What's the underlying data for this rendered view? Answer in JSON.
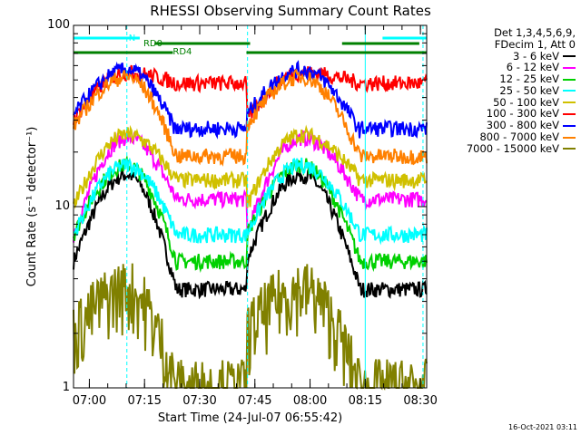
{
  "chart_data": {
    "type": "line",
    "title": "RHESSI Observing Summary Count Rates",
    "xlabel": "Start Time (24-Jul-07 06:55:42)",
    "ylabel": "Count Rate (s⁻¹ detector⁻¹)",
    "yscale": "log",
    "ylim": [
      1,
      100
    ],
    "y_ticks": [
      "1",
      "10",
      "100"
    ],
    "xlim_minutes": [
      0,
      96
    ],
    "x_ticks": [
      "07:00",
      "07:15",
      "07:30",
      "07:45",
      "08:00",
      "08:15",
      "08:30"
    ],
    "x_tick_minutes": [
      4.3,
      19.3,
      34.3,
      49.3,
      64.3,
      79.3,
      94.3
    ],
    "legend_header": [
      "Det 1,3,4,5,6,9,",
      "FDecim 1, Att 0"
    ],
    "legend_placement": "right",
    "series": [
      {
        "name": "3 - 6 keV",
        "color": "#000000",
        "day": [
          5,
          15,
          3.5
        ],
        "night": 3.5
      },
      {
        "name": "6 - 12 keV",
        "color": "#ff00ff",
        "day": [
          7,
          24,
          11
        ],
        "night": 11
      },
      {
        "name": "12 - 25 keV",
        "color": "#00d000",
        "day": [
          7,
          17,
          5
        ],
        "night": 5
      },
      {
        "name": "25 - 50 keV",
        "color": "#00ffff",
        "day": [
          7,
          17,
          7
        ],
        "night": 7
      },
      {
        "name": "50 - 100 keV",
        "color": "#d0c000",
        "day": [
          10,
          25,
          14
        ],
        "night": 14
      },
      {
        "name": "100 - 300 keV",
        "color": "#ff0000",
        "day": [
          30,
          55,
          48
        ],
        "night": 48
      },
      {
        "name": "300 - 800 keV",
        "color": "#0000ff",
        "day": [
          32,
          57,
          26
        ],
        "night": 27
      },
      {
        "name": "800 - 7000 keV",
        "color": "#ff8000",
        "day": [
          28,
          52,
          19
        ],
        "night": 19
      },
      {
        "name": "7000 - 15000 keV",
        "color": "#808000",
        "day": [
          2,
          3.5,
          1
        ],
        "night": 1
      }
    ],
    "annotations": [
      {
        "text": "N",
        "color": "#00ffff"
      },
      {
        "text": "RD0",
        "color": "#008000"
      },
      {
        "text": "RD4",
        "color": "#008000"
      }
    ],
    "vertical_markers_minutes": [
      {
        "t": 14.5,
        "style": "dashed",
        "color": "#00ffff"
      },
      {
        "t": 47.3,
        "style": "dashed",
        "color": "#00ffff"
      },
      {
        "t": 79.3,
        "style": "solid",
        "color": "#00ffff"
      },
      {
        "t": 95.0,
        "style": "dashed",
        "color": "#00ffff"
      }
    ],
    "timestamp": "16-Oct-2021 03:11"
  }
}
